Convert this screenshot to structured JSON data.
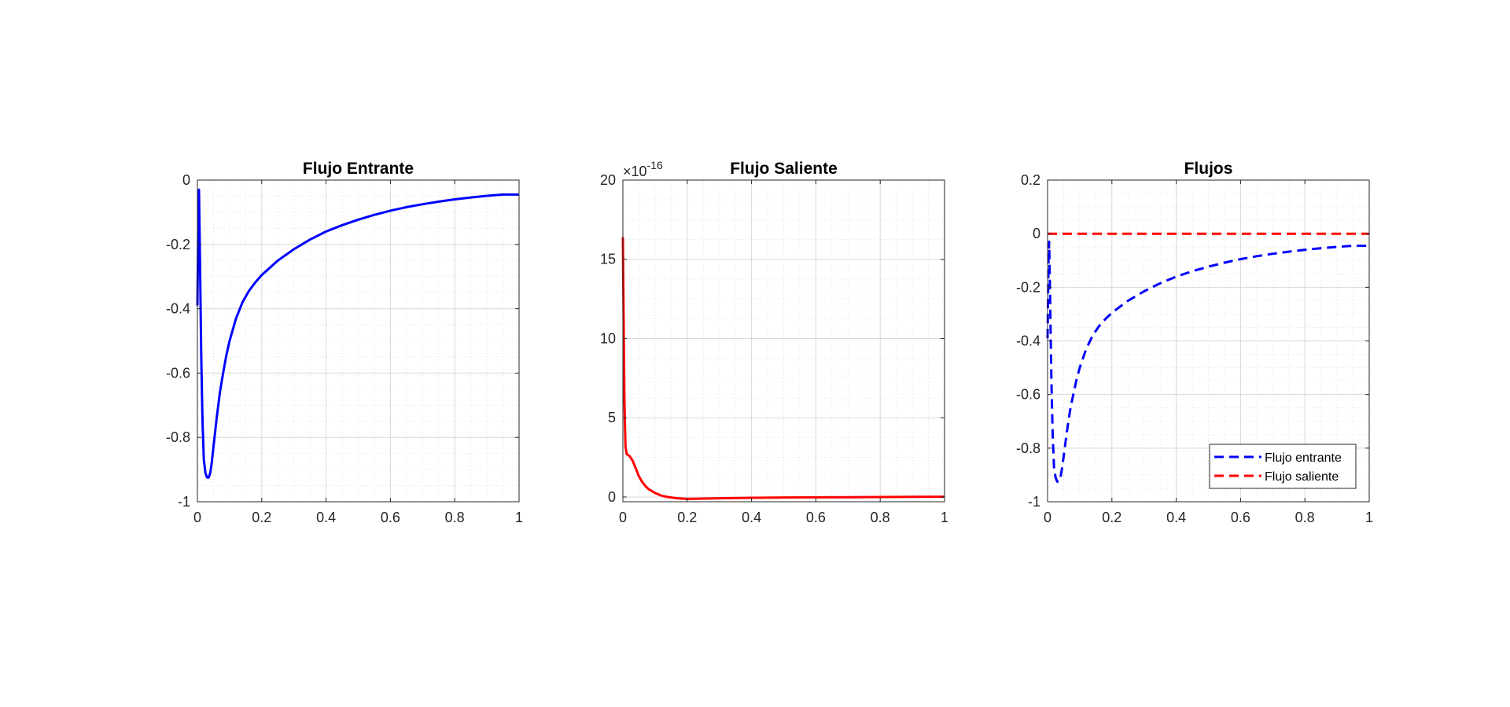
{
  "chart_data": [
    {
      "type": "line",
      "title": "Flujo Entrante",
      "xlim": [
        0,
        1
      ],
      "ylim": [
        -1,
        0
      ],
      "xticks": [
        "0",
        "0.2",
        "0.4",
        "0.6",
        "0.8",
        "1"
      ],
      "xtick_values": [
        0,
        0.2,
        0.4,
        0.6,
        0.8,
        1
      ],
      "yticks": [
        "-1",
        "-0.8",
        "-0.6",
        "-0.4",
        "-0.2",
        "0"
      ],
      "ytick_values": [
        -1,
        -0.8,
        -0.6,
        -0.4,
        -0.2,
        0
      ],
      "grid": true,
      "minor_grid": true,
      "series": [
        {
          "color": "#0000ff",
          "style": "solid",
          "x": [
            0,
            0.003,
            0.005,
            0.008,
            0.012,
            0.016,
            0.02,
            0.025,
            0.03,
            0.035,
            0.04,
            0.045,
            0.05,
            0.06,
            0.07,
            0.08,
            0.09,
            0.1,
            0.12,
            0.14,
            0.16,
            0.18,
            0.2,
            0.25,
            0.3,
            0.35,
            0.4,
            0.45,
            0.5,
            0.55,
            0.6,
            0.65,
            0.7,
            0.75,
            0.8,
            0.85,
            0.9,
            0.95,
            1.0
          ],
          "y": [
            -0.39,
            -0.1,
            -0.03,
            -0.25,
            -0.55,
            -0.75,
            -0.87,
            -0.91,
            -0.925,
            -0.925,
            -0.91,
            -0.875,
            -0.83,
            -0.74,
            -0.66,
            -0.6,
            -0.545,
            -0.5,
            -0.43,
            -0.38,
            -0.345,
            -0.318,
            -0.295,
            -0.25,
            -0.215,
            -0.185,
            -0.16,
            -0.14,
            -0.123,
            -0.108,
            -0.095,
            -0.084,
            -0.075,
            -0.067,
            -0.06,
            -0.054,
            -0.049,
            -0.045,
            -0.045
          ]
        }
      ]
    },
    {
      "type": "line",
      "title": "Flujo Saliente",
      "exponent": "-16",
      "xlim": [
        0,
        1
      ],
      "ylim": [
        -0.3,
        20
      ],
      "xticks": [
        "0",
        "0.2",
        "0.4",
        "0.6",
        "0.8",
        "1"
      ],
      "xtick_values": [
        0,
        0.2,
        0.4,
        0.6,
        0.8,
        1
      ],
      "yticks": [
        "0",
        "5",
        "10",
        "15",
        "20"
      ],
      "ytick_values": [
        0,
        5,
        10,
        15,
        20
      ],
      "grid": true,
      "minor_grid": true,
      "series": [
        {
          "color": "#ff0000",
          "style": "solid",
          "x": [
            0,
            0.002,
            0.005,
            0.008,
            0.012,
            0.02,
            0.03,
            0.04,
            0.05,
            0.06,
            0.07,
            0.08,
            0.1,
            0.12,
            0.14,
            0.17,
            0.2,
            0.25,
            0.3,
            0.4,
            0.5,
            0.6,
            0.7,
            0.8,
            0.9,
            1.0
          ],
          "y": [
            16.4,
            12,
            6,
            3.2,
            2.7,
            2.6,
            2.3,
            1.8,
            1.3,
            0.95,
            0.7,
            0.5,
            0.25,
            0.08,
            0.0,
            -0.08,
            -0.12,
            -0.1,
            -0.08,
            -0.05,
            -0.03,
            -0.02,
            -0.01,
            0.0,
            0.01,
            0.02
          ]
        }
      ]
    },
    {
      "type": "line",
      "title": "Flujos",
      "xlim": [
        0,
        1
      ],
      "ylim": [
        -1,
        0.2
      ],
      "xticks": [
        "0",
        "0.2",
        "0.4",
        "0.6",
        "0.8",
        "1"
      ],
      "xtick_values": [
        0,
        0.2,
        0.4,
        0.6,
        0.8,
        1
      ],
      "yticks": [
        "-1",
        "-0.8",
        "-0.6",
        "-0.4",
        "-0.2",
        "0",
        "0.2"
      ],
      "ytick_values": [
        -1,
        -0.8,
        -0.6,
        -0.4,
        -0.2,
        0,
        0.2
      ],
      "grid": true,
      "minor_grid": true,
      "legend": "bottom-right",
      "series": [
        {
          "name": "Flujo entrante",
          "color": "#0000ff",
          "style": "dashed",
          "x": [
            0,
            0.003,
            0.005,
            0.008,
            0.012,
            0.016,
            0.02,
            0.025,
            0.03,
            0.035,
            0.04,
            0.045,
            0.05,
            0.06,
            0.07,
            0.08,
            0.09,
            0.1,
            0.12,
            0.14,
            0.16,
            0.18,
            0.2,
            0.25,
            0.3,
            0.35,
            0.4,
            0.45,
            0.5,
            0.55,
            0.6,
            0.65,
            0.7,
            0.75,
            0.8,
            0.85,
            0.9,
            0.95,
            1.0
          ],
          "y": [
            -0.39,
            -0.1,
            -0.03,
            -0.25,
            -0.55,
            -0.75,
            -0.87,
            -0.91,
            -0.925,
            -0.925,
            -0.91,
            -0.875,
            -0.83,
            -0.74,
            -0.66,
            -0.6,
            -0.545,
            -0.5,
            -0.43,
            -0.38,
            -0.345,
            -0.318,
            -0.295,
            -0.25,
            -0.215,
            -0.185,
            -0.16,
            -0.14,
            -0.123,
            -0.108,
            -0.095,
            -0.084,
            -0.075,
            -0.067,
            -0.06,
            -0.054,
            -0.049,
            -0.045,
            -0.045
          ]
        },
        {
          "name": "Flujo saliente",
          "color": "#ff0000",
          "style": "dashed",
          "x": [
            0,
            1
          ],
          "y": [
            0,
            0
          ]
        }
      ]
    }
  ]
}
